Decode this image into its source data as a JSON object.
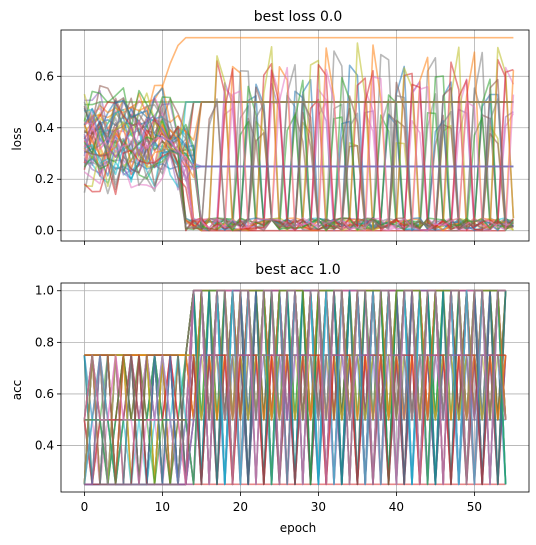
{
  "chart_data": [
    {
      "type": "line",
      "title": "best loss 0.0",
      "xlabel": "",
      "ylabel": "loss",
      "xlim": [
        -3,
        57
      ],
      "ylim": [
        -0.04,
        0.78
      ],
      "xticks": [
        0,
        10,
        20,
        30,
        40,
        50
      ],
      "xtick_labels_shown": false,
      "yticks": [
        0.0,
        0.2,
        0.4,
        0.6
      ],
      "ytick_labels": [
        "0.0",
        "0.2",
        "0.4",
        "0.6"
      ],
      "grid": true,
      "n_series": 48,
      "series": [
        {
          "values": [
            0.26,
            0.28,
            0.25,
            0.27,
            0.24,
            0.25,
            0.23,
            0.26,
            0.24,
            0.25,
            0.26,
            0.24,
            0.25,
            0.25,
            0.25,
            0.25,
            0.25,
            0.25,
            0.25,
            0.25,
            0.25,
            0.25,
            0.25,
            0.25,
            0.25,
            0.25,
            0.25,
            0.25,
            0.25,
            0.25,
            0.25,
            0.25,
            0.25,
            0.25,
            0.25,
            0.25,
            0.25,
            0.25,
            0.25,
            0.25,
            0.25,
            0.25,
            0.25,
            0.25,
            0.25,
            0.25,
            0.25,
            0.25,
            0.25,
            0.25,
            0.25,
            0.25,
            0.25,
            0.25,
            0.25,
            0.25
          ]
        },
        {
          "values": [
            0.38,
            0.42,
            0.45,
            0.44,
            0.46,
            0.47,
            0.48,
            0.5,
            0.5,
            0.51,
            0.56,
            0.65,
            0.72,
            0.75,
            0.75,
            0.75,
            0.75,
            0.75,
            0.75,
            0.75,
            0.75,
            0.75,
            0.75,
            0.75,
            0.75,
            0.75,
            0.75,
            0.75,
            0.75,
            0.75,
            0.75,
            0.75,
            0.75,
            0.75,
            0.75,
            0.75,
            0.75,
            0.75,
            0.75,
            0.75,
            0.75,
            0.75,
            0.75,
            0.75,
            0.75,
            0.75,
            0.75,
            0.75,
            0.75,
            0.75,
            0.75,
            0.75,
            0.75,
            0.75,
            0.75,
            0.75
          ]
        },
        {
          "values": [
            0.49,
            0.49,
            0.5,
            0.5,
            0.5,
            0.5,
            0.5,
            0.5,
            0.5,
            0.5,
            0.5,
            0.5,
            0.5,
            0.5,
            0.5,
            0.5,
            0.5,
            0.5,
            0.5,
            0.5,
            0.5,
            0.5,
            0.5,
            0.5,
            0.5,
            0.5,
            0.5,
            0.5,
            0.5,
            0.5,
            0.5,
            0.5,
            0.5,
            0.5,
            0.5,
            0.5,
            0.5,
            0.5,
            0.5,
            0.5,
            0.5,
            0.5,
            0.5,
            0.5,
            0.5,
            0.5,
            0.5,
            0.5,
            0.5,
            0.5,
            0.5,
            0.5,
            0.5,
            0.5,
            0.5,
            0.5
          ]
        },
        {
          "values": [
            0.35,
            0.3,
            0.42,
            0.28,
            0.38,
            0.33,
            0.4,
            0.29,
            0.36,
            0.31,
            0.35,
            0.3,
            0.33,
            0.28,
            0.02,
            0.0,
            0.0,
            0.0,
            0.0,
            0.0,
            0.0,
            0.0,
            0.0,
            0.0,
            0.0,
            0.0,
            0.0,
            0.0,
            0.0,
            0.0,
            0.0,
            0.0,
            0.0,
            0.0,
            0.0,
            0.0,
            0.0,
            0.0,
            0.0,
            0.0,
            0.0,
            0.0,
            0.0,
            0.0,
            0.0,
            0.0,
            0.0,
            0.0,
            0.0,
            0.0,
            0.0,
            0.0,
            0.0,
            0.0,
            0.0
          ]
        }
      ]
    },
    {
      "type": "line",
      "title": "best acc 1.0",
      "xlabel": "epoch",
      "ylabel": "acc",
      "xlim": [
        -3,
        57
      ],
      "ylim": [
        0.22,
        1.03
      ],
      "xticks": [
        0,
        10,
        20,
        30,
        40,
        50
      ],
      "xtick_labels": [
        "0",
        "10",
        "20",
        "30",
        "40",
        "50"
      ],
      "yticks": [
        0.4,
        0.6,
        0.8,
        1.0
      ],
      "ytick_labels": [
        "0.4",
        "0.6",
        "0.8",
        "1.0"
      ],
      "grid": true,
      "n_series": 48,
      "series": [
        {
          "values": [
            0.5,
            0.5,
            0.5,
            0.5,
            0.5,
            0.5,
            0.5,
            0.5,
            0.5,
            0.5,
            0.5,
            0.5,
            0.5,
            0.5,
            0.5,
            0.5,
            0.5,
            0.5,
            0.5,
            0.5,
            0.5,
            0.5,
            0.5,
            0.5,
            0.5,
            0.5,
            0.5,
            0.5,
            0.5,
            0.5,
            0.5,
            0.5,
            0.5,
            0.5,
            0.5,
            0.5,
            0.5,
            0.5,
            0.5,
            0.5,
            0.5,
            0.5,
            0.5,
            0.5,
            0.5,
            0.5,
            0.5,
            0.5,
            0.5,
            0.5,
            0.5,
            0.5,
            0.5,
            0.5,
            0.5
          ]
        },
        {
          "values": [
            0.75,
            0.75,
            0.75,
            0.75,
            0.75,
            0.75,
            0.75,
            0.75,
            0.75,
            0.75,
            0.75,
            0.75,
            0.75,
            0.75,
            0.75,
            0.75,
            0.75,
            0.75,
            0.75,
            0.75,
            0.75,
            0.75,
            0.75,
            0.75,
            0.75,
            0.75,
            0.75,
            0.75,
            0.75,
            0.75,
            0.75,
            0.75,
            0.75,
            0.75,
            0.75,
            0.75,
            0.75,
            0.75,
            0.75,
            0.75,
            0.75,
            0.75,
            0.75,
            0.75,
            0.75,
            0.75,
            0.75,
            0.75,
            0.75,
            0.75,
            0.75,
            0.75,
            0.75,
            0.75,
            0.75
          ]
        },
        {
          "values": [
            0.5,
            0.25,
            0.5,
            0.75,
            0.75,
            0.75,
            0.75,
            0.75,
            0.75,
            0.75,
            0.75,
            0.75,
            0.75,
            0.75,
            1.0,
            1.0,
            1.0,
            1.0,
            1.0,
            1.0,
            1.0,
            1.0,
            1.0,
            1.0,
            1.0,
            1.0,
            1.0,
            1.0,
            1.0,
            1.0,
            1.0,
            1.0,
            1.0,
            1.0,
            1.0,
            1.0,
            1.0,
            1.0,
            1.0,
            1.0,
            1.0,
            1.0,
            1.0,
            1.0,
            1.0,
            1.0,
            1.0,
            1.0,
            1.0,
            1.0,
            1.0,
            1.0,
            1.0,
            1.0,
            1.0
          ]
        },
        {
          "values": [
            0.25,
            0.25,
            0.25,
            0.25,
            0.25,
            0.25,
            0.25,
            0.25,
            0.25,
            0.25,
            0.25,
            0.25,
            0.25,
            0.25,
            0.25,
            0.25,
            0.25,
            0.25,
            0.25,
            0.25,
            0.25,
            0.25,
            0.25,
            0.25,
            0.25,
            0.25,
            0.25,
            0.25,
            0.25,
            0.25,
            0.25,
            0.25,
            0.25,
            0.25,
            0.25,
            0.25,
            0.25,
            0.25,
            0.25,
            0.25,
            0.25,
            0.25,
            0.25,
            0.25,
            0.25,
            0.25,
            0.25,
            0.25,
            0.25,
            0.25,
            0.25,
            0.25,
            0.25,
            0.25,
            0.25
          ]
        }
      ]
    }
  ],
  "colors": [
    "#1f77b4",
    "#ff7f0e",
    "#2ca02c",
    "#d62728",
    "#9467bd",
    "#8c564b",
    "#e377c2",
    "#7f7f7f",
    "#bcbd22",
    "#17becf"
  ]
}
